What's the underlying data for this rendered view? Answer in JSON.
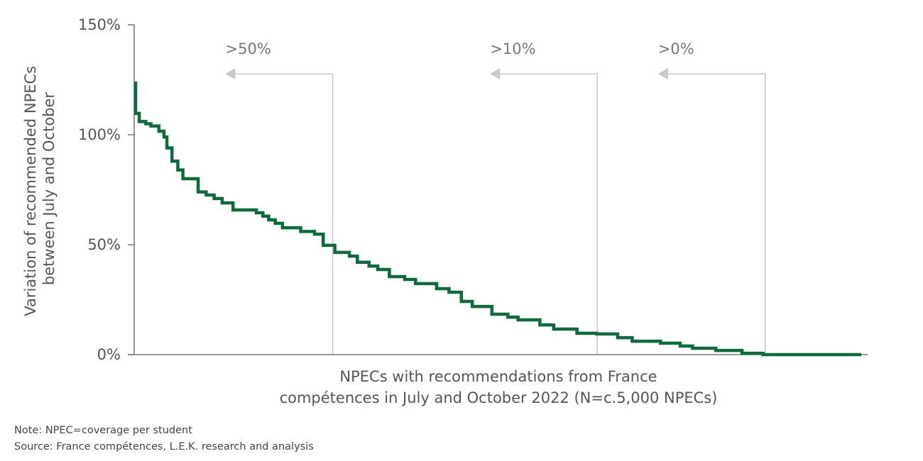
{
  "chart_data": {
    "type": "line",
    "style": "step",
    "title": "",
    "ylabel_lines": [
      "Variation of recommended NPECs",
      "between July and October"
    ],
    "xlabel_lines": [
      "NPECs with recommendations from France",
      "compétences in July and October 2022 (N=c.5,000 NPECs)"
    ],
    "ylim": [
      0,
      150
    ],
    "xlim": [
      0,
      1
    ],
    "yticks": [
      0,
      50,
      100,
      150
    ],
    "ytick_labels": [
      "0%",
      "50%",
      "100%",
      "150%"
    ],
    "grid": false,
    "series_color": "#0b6b3a",
    "annotation_color": "#c8c8c8",
    "x": [
      0,
      0.002,
      0.007,
      0.016,
      0.023,
      0.034,
      0.041,
      0.045,
      0.052,
      0.06,
      0.067,
      0.088,
      0.099,
      0.11,
      0.121,
      0.136,
      0.168,
      0.177,
      0.185,
      0.194,
      0.204,
      0.229,
      0.248,
      0.26,
      0.276,
      0.296,
      0.307,
      0.323,
      0.335,
      0.351,
      0.372,
      0.387,
      0.416,
      0.433,
      0.45,
      0.465,
      0.492,
      0.514,
      0.528,
      0.558,
      0.577,
      0.609,
      0.636,
      0.665,
      0.685,
      0.724,
      0.751,
      0.768,
      0.8,
      0.836,
      0.865,
      1.0
    ],
    "y": [
      123.5,
      109.7,
      106,
      105,
      104,
      101.6,
      99,
      94,
      88,
      84,
      80,
      74,
      72.6,
      71,
      69,
      65.8,
      64.5,
      63,
      61.3,
      59.7,
      57.7,
      56,
      54.8,
      49.7,
      46.5,
      44.8,
      42,
      40.3,
      38.7,
      35.5,
      34.2,
      32.3,
      30,
      28.4,
      24.2,
      21.9,
      18.4,
      17,
      15.8,
      13.5,
      11.6,
      9.7,
      9.4,
      7.7,
      6.1,
      5.2,
      3.9,
      2.9,
      1.9,
      0.6,
      0,
      0
    ],
    "annotations": [
      {
        "label": ">50%",
        "x": 0.273
      },
      {
        "label": ">10%",
        "x": 0.637
      },
      {
        "label": ">0%",
        "x": 0.868
      }
    ],
    "annotation_line_top": 127.7
  },
  "notes": {
    "note": "Note: NPEC=coverage per student",
    "source": "Source: France compétences, L.E.K. research and analysis"
  }
}
